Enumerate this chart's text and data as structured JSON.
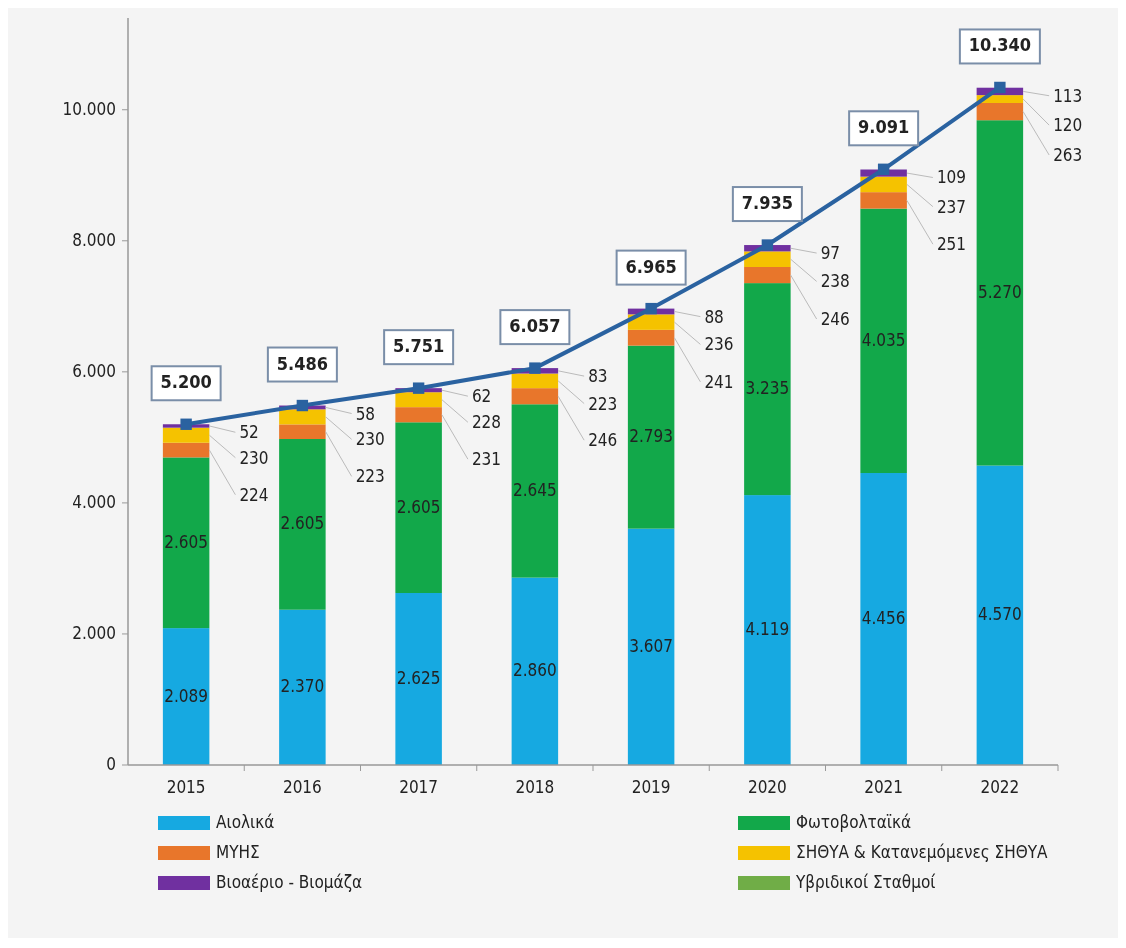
{
  "chart_data": {
    "type": "bar",
    "stacked": true,
    "categories": [
      "2015",
      "2016",
      "2017",
      "2018",
      "2019",
      "2020",
      "2021",
      "2022"
    ],
    "ylim": [
      0,
      11400
    ],
    "yticks": [
      {
        "value": 0,
        "label": "0"
      },
      {
        "value": 2000,
        "label": "2.000"
      },
      {
        "value": 4000,
        "label": "4.000"
      },
      {
        "value": 6000,
        "label": "6.000"
      },
      {
        "value": 8000,
        "label": "8.000"
      },
      {
        "value": 10000,
        "label": "10.000"
      }
    ],
    "grid": false,
    "legend": "bottom",
    "marker": "square",
    "series": [
      {
        "name": "Αιολικά",
        "color": "#16a9e1",
        "values": [
          2089,
          2370,
          2625,
          2860,
          3607,
          4119,
          4456,
          4570
        ],
        "value_labels": [
          "2.089",
          "2.370",
          "2.625",
          "2.860",
          "3.607",
          "4.119",
          "4.456",
          "4.570"
        ]
      },
      {
        "name": "Φωτοβολταϊκά",
        "color": "#12a84a",
        "values": [
          2605,
          2605,
          2605,
          2645,
          2793,
          3235,
          4035,
          5270
        ],
        "value_labels": [
          "2.605",
          "2.605",
          "2.605",
          "2.645",
          "2.793",
          "3.235",
          "4.035",
          "5.270"
        ]
      },
      {
        "name": "ΜΥΗΣ",
        "color": "#e8762b",
        "values": [
          224,
          223,
          231,
          246,
          241,
          246,
          251,
          263
        ],
        "value_labels": [
          "224",
          "223",
          "231",
          "246",
          "241",
          "246",
          "251",
          "263"
        ]
      },
      {
        "name": "ΣΗΘΥΑ & Κατανεμόμενες ΣΗΘΥΑ",
        "color": "#f5c200",
        "values": [
          230,
          230,
          228,
          223,
          236,
          238,
          237,
          120
        ],
        "value_labels": [
          "230",
          "230",
          "228",
          "223",
          "236",
          "238",
          "237",
          "120"
        ]
      },
      {
        "name": "Βιοαέριο - Βιομάζα",
        "color": "#7030a0",
        "values": [
          52,
          58,
          62,
          83,
          88,
          97,
          109,
          113
        ],
        "value_labels": [
          "52",
          "58",
          "62",
          "83",
          "88",
          "97",
          "109",
          "113"
        ]
      },
      {
        "name": "Υβριδικοί Σταθμοί",
        "color": "#70ad47",
        "values": [
          0,
          0,
          0,
          0,
          0,
          0,
          0,
          0
        ]
      },
      {
        "type": "line",
        "color": "#2a62a0",
        "values": [
          5200,
          5486,
          5751,
          6057,
          6965,
          7935,
          9091,
          10340
        ],
        "value_labels": [
          "5.200",
          "5.486",
          "5.751",
          "6.057",
          "6.965",
          "7.935",
          "9.091",
          "10.340"
        ]
      }
    ]
  }
}
